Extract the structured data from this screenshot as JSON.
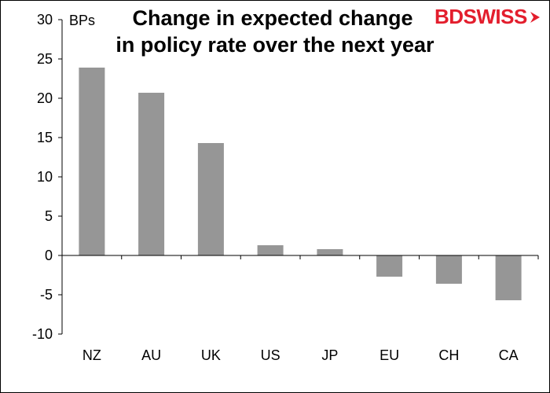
{
  "brand": {
    "logo_text": "BDSWISS",
    "color": "#e31e2d"
  },
  "chart_data": {
    "type": "bar",
    "title_lines": [
      "Change in expected change",
      "in policy rate over the next year"
    ],
    "unit_label": "BPs",
    "categories": [
      "NZ",
      "AU",
      "UK",
      "US",
      "JP",
      "EU",
      "CH",
      "CA"
    ],
    "values": [
      23.9,
      20.7,
      14.3,
      1.3,
      0.8,
      -2.7,
      -3.6,
      -5.7
    ],
    "ylim": [
      -10,
      30
    ],
    "yticks": [
      "30",
      "25",
      "20",
      "15",
      "10",
      "5",
      "0",
      "-5",
      "-10"
    ],
    "bar_color": "#969696",
    "grid": false,
    "legend": "none"
  }
}
